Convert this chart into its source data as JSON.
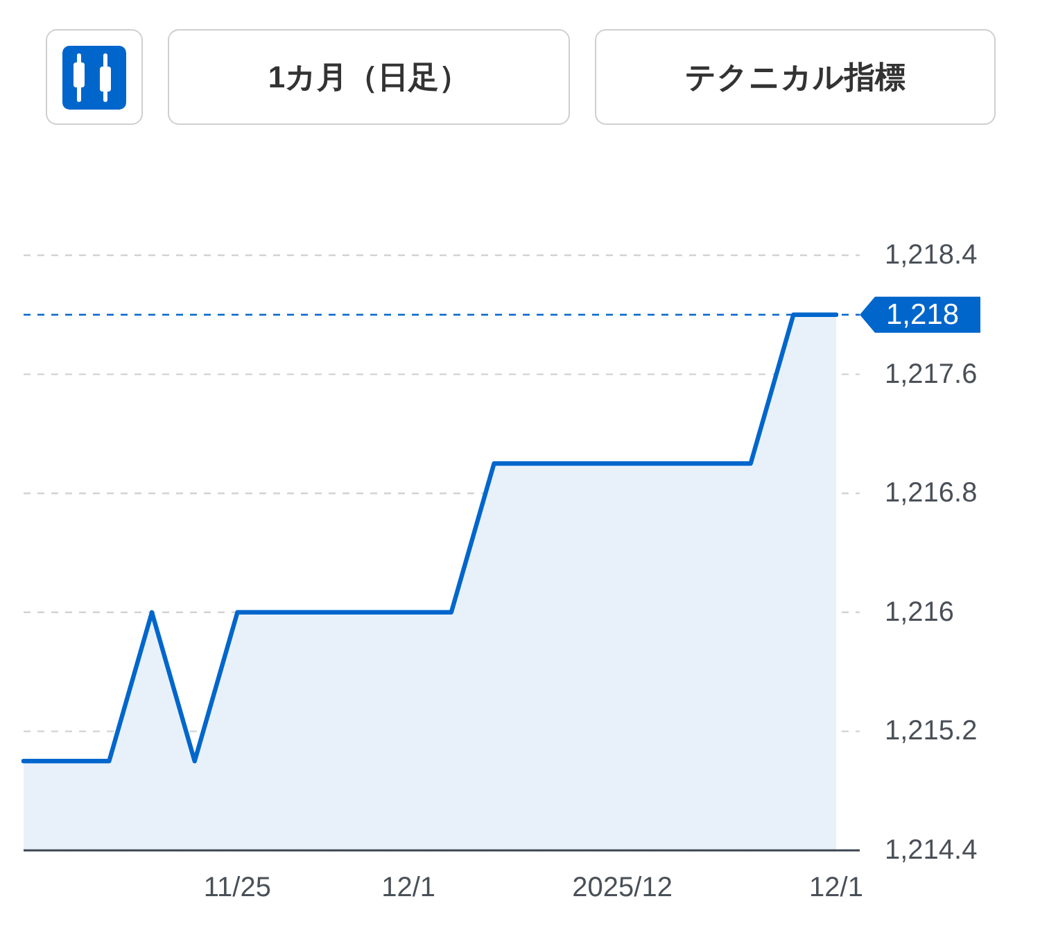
{
  "chart_data": {
    "type": "area",
    "annotations": [
      "1カ月（日足）",
      "テクニカル指標"
    ],
    "categories": [
      null,
      null,
      null,
      null,
      null,
      "11/25",
      null,
      null,
      null,
      "12/1",
      null,
      null,
      null,
      null,
      "2025/12",
      null,
      null,
      null,
      null,
      "12/1"
    ],
    "series": [
      {
        "color": "#0066cc",
        "values": [
          1215,
          1215,
          1215,
          1216,
          1215,
          1216,
          1216,
          1216,
          1216,
          1216,
          1216,
          1217,
          1217,
          1217,
          1217,
          1217,
          1217,
          1217,
          1218,
          1218
        ]
      }
    ],
    "ylim": [
      1214.4,
      1218.4
    ],
    "yticks": [
      {
        "value": 1214.4,
        "label": "1,214.4"
      },
      {
        "value": 1215.2,
        "label": "1,215.2"
      },
      {
        "value": 1216,
        "label": "1,216"
      },
      {
        "value": 1216.8,
        "label": "1,216.8"
      },
      {
        "value": 1217.6,
        "label": "1,217.6"
      },
      {
        "value": 1218.4,
        "label": "1,218.4"
      }
    ],
    "grid": "y",
    "ref_lines": [
      {
        "axis": "y",
        "value": 1218,
        "label": "1,218",
        "color": "#0066cc",
        "line_style": "dashed"
      }
    ]
  }
}
